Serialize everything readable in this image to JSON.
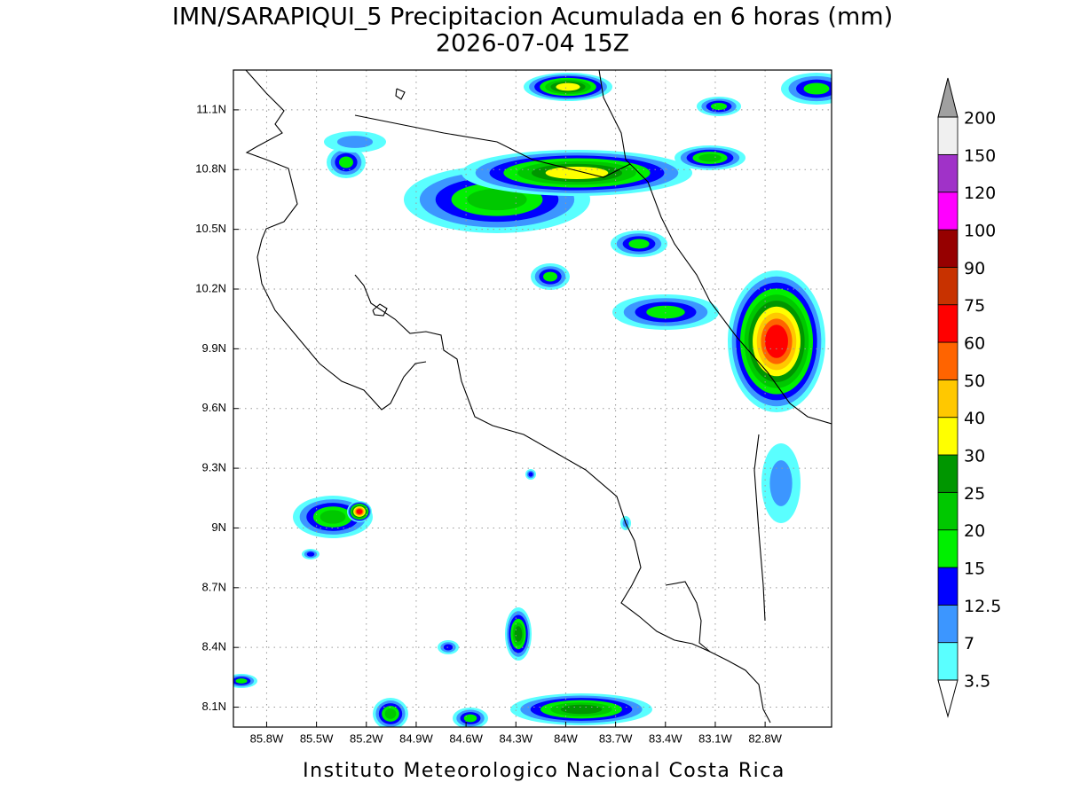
{
  "title": "IMN/SARAPIQUI_5 Precipitacion Acumulada en 6 horas (mm)",
  "subtitle": "2026-07-04 15Z",
  "footer": "Instituto Meteorologico Nacional Costa Rica",
  "map": {
    "xlim": [
      -86,
      -82.4
    ],
    "ylim": [
      8,
      11.3
    ],
    "grid": true,
    "xticks": [
      {
        "value": -85.8,
        "label": "85.8W"
      },
      {
        "value": -85.5,
        "label": "85.5W"
      },
      {
        "value": -85.2,
        "label": "85.2W"
      },
      {
        "value": -84.9,
        "label": "84.9W"
      },
      {
        "value": -84.6,
        "label": "84.6W"
      },
      {
        "value": -84.3,
        "label": "84.3W"
      },
      {
        "value": -84,
        "label": "84W"
      },
      {
        "value": -83.7,
        "label": "83.7W"
      },
      {
        "value": -83.4,
        "label": "83.4W"
      },
      {
        "value": -83.1,
        "label": "83.1W"
      },
      {
        "value": -82.8,
        "label": "82.8W"
      }
    ],
    "yticks": [
      {
        "value": 8.1,
        "label": "8.1N"
      },
      {
        "value": 8.4,
        "label": "8.4N"
      },
      {
        "value": 8.7,
        "label": "8.7N"
      },
      {
        "value": 9,
        "label": "9N"
      },
      {
        "value": 9.3,
        "label": "9.3N"
      },
      {
        "value": 9.6,
        "label": "9.6N"
      },
      {
        "value": 9.9,
        "label": "9.9N"
      },
      {
        "value": 10.2,
        "label": "10.2N"
      },
      {
        "value": 10.5,
        "label": "10.5N"
      },
      {
        "value": 10.8,
        "label": "10.8N"
      },
      {
        "value": 11.1,
        "label": "11.1N"
      }
    ]
  },
  "colorbar": {
    "levels": [
      3.5,
      7,
      12.5,
      15,
      20,
      25,
      30,
      40,
      50,
      60,
      75,
      90,
      100,
      120,
      150,
      200
    ],
    "colors": [
      "#5affff",
      "#3c96ff",
      "#0000ff",
      "#00f000",
      "#00c800",
      "#009600",
      "#ffff00",
      "#ffc800",
      "#ff6400",
      "#ff0000",
      "#c83200",
      "#960000",
      "#ff00ff",
      "#a032c8",
      "#f0f0f0"
    ],
    "below_color": "#ffffff",
    "above_color": "#a0a0a0"
  }
}
